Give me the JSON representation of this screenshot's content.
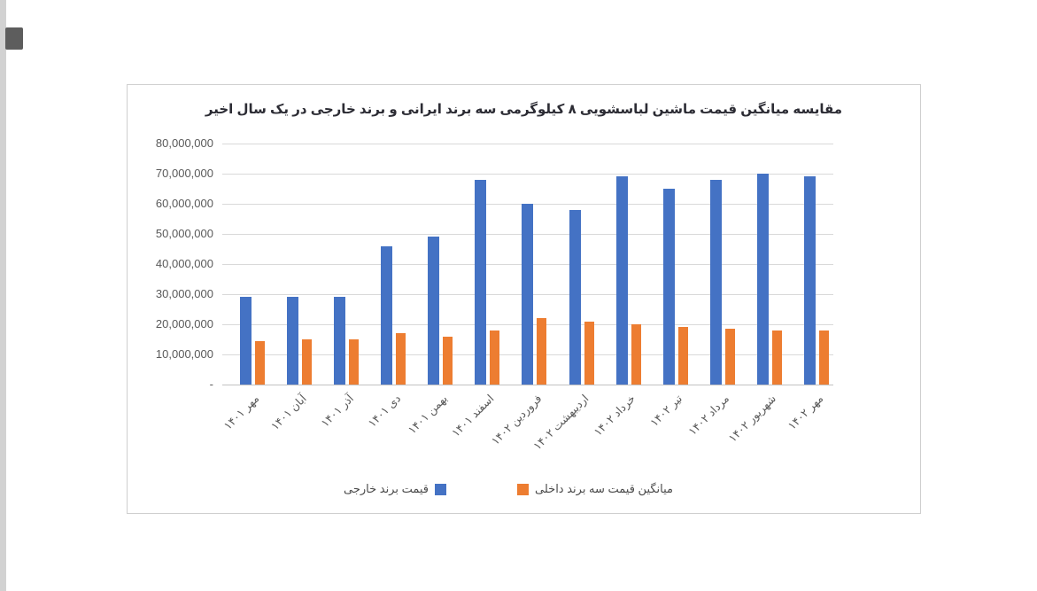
{
  "scrollbar": {
    "track_color": "#d2d2d2",
    "thumb_color": "#5d5d5d"
  },
  "panel": {
    "bg": "#ffffff",
    "border_color": "#cfcfcf"
  },
  "chart_data": {
    "type": "bar",
    "title": "مقایسه میانگین قیمت ماشین لباسشویی ۸ کیلوگرمی سه برند ایرانی و برند خارجی در یک سال اخیر",
    "title_color": "#2c2c34",
    "direction": "rtl",
    "categories": [
      "مهر ۱۴۰۱",
      "آبان ۱۴۰۱",
      "آذر ۱۴۰۱",
      "دی ۱۴۰۱",
      "بهمن ۱۴۰۱",
      "اسفند ۱۴۰۱",
      "فروردین ۱۴۰۲",
      "اردیبهشت ۱۴۰۲",
      "خرداد ۱۴۰۲",
      "تیر ۱۴۰۲",
      "مرداد ۱۴۰۲",
      "شهریور ۱۴۰۲",
      "مهر ۱۴۰۲"
    ],
    "series": [
      {
        "name": "قیمت برند خارجی",
        "color": "#4472C4",
        "values": [
          29000000,
          29000000,
          29000000,
          46000000,
          49000000,
          68000000,
          60000000,
          58000000,
          69000000,
          65000000,
          68000000,
          70000000,
          69000000
        ]
      },
      {
        "name": "میانگین قیمت سه برند داخلی",
        "color": "#ED7D31",
        "values": [
          14500000,
          15000000,
          15000000,
          17000000,
          16000000,
          18000000,
          22000000,
          21000000,
          20000000,
          19000000,
          18500000,
          18000000,
          18000000
        ]
      }
    ],
    "y_axis": {
      "max": 80000000,
      "tick_labels": [
        "80,000,000",
        "70,000,000",
        "60,000,000",
        "50,000,000",
        "40,000,000",
        "30,000,000",
        "20,000,000",
        "10,000,000",
        "-"
      ],
      "tick_values": [
        80000000,
        70000000,
        60000000,
        50000000,
        40000000,
        30000000,
        20000000,
        10000000,
        0
      ]
    },
    "grid": true,
    "gridline_color": "#d9d9d9",
    "legend_position": "bottom",
    "xlabel_rotation_deg": -45
  }
}
